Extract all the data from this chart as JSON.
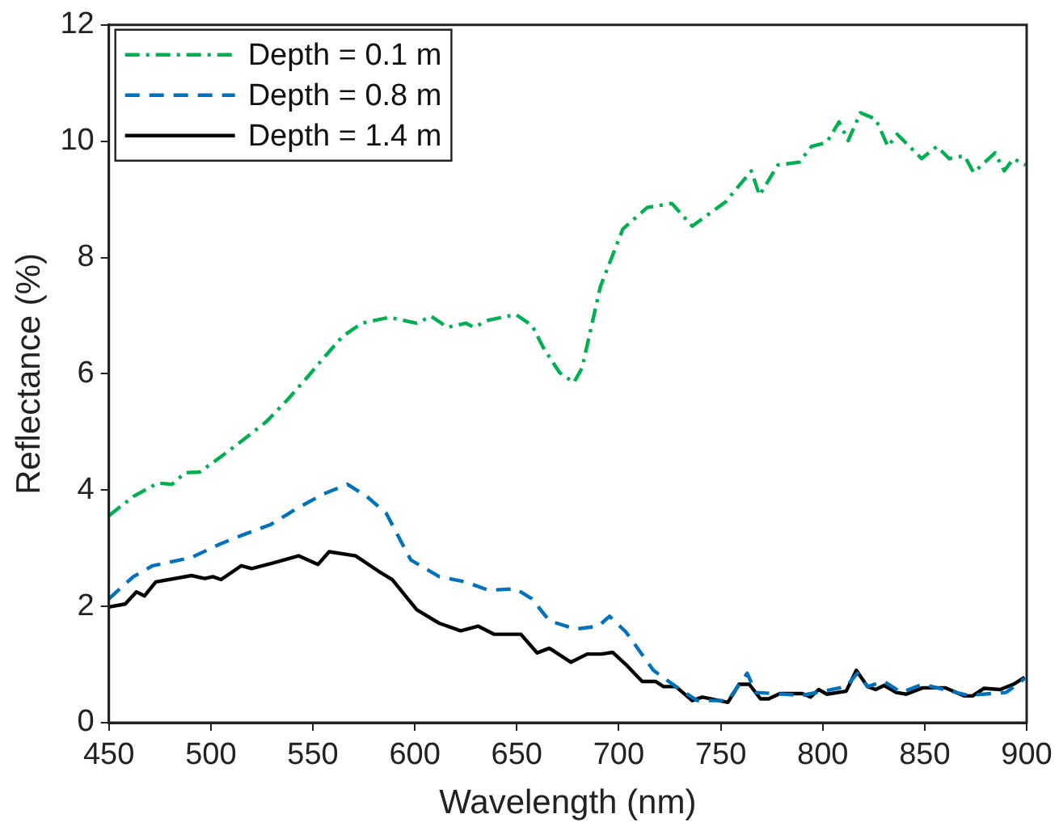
{
  "chart_data": {
    "type": "line",
    "xlabel": "Wavelength (nm)",
    "ylabel": "Reflectance (%)",
    "xlim": [
      450,
      900
    ],
    "xticks": [
      450,
      500,
      550,
      600,
      650,
      700,
      750,
      800,
      850,
      900
    ],
    "ylim": [
      0,
      12
    ],
    "yticks": [
      0,
      2,
      4,
      6,
      8,
      10,
      12
    ],
    "grid": false,
    "legend": "top left",
    "marker": "none",
    "series": [
      {
        "name": "Depth = 0.1 m",
        "color": "#00b050",
        "line_style": "dashdot",
        "x": [
          450,
          462,
          474,
          481,
          487.5,
          494.5,
          504,
          515,
          527,
          537.5,
          547,
          555,
          564.5,
          574,
          587.5,
          601,
          608,
          616,
          625,
          629,
          636,
          649.5,
          657.5,
          663,
          671,
          678,
          682,
          691,
          702,
          714,
          726,
          736,
          752.5,
          765,
          769,
          778,
          788.5,
          794.5,
          802,
          808,
          812.5,
          818.5,
          826,
          832,
          836.5,
          848.5,
          856,
          862,
          869.5,
          874,
          884.5,
          889,
          893.5,
          899.5
        ],
        "values": [
          3.56,
          3.89,
          4.12,
          4.1,
          4.3,
          4.31,
          4.55,
          4.84,
          5.17,
          5.55,
          5.93,
          6.26,
          6.64,
          6.87,
          6.97,
          6.87,
          6.99,
          6.8,
          6.87,
          6.8,
          6.92,
          7.02,
          6.83,
          6.45,
          6.02,
          5.85,
          6.1,
          7.5,
          8.49,
          8.86,
          8.93,
          8.54,
          8.96,
          9.49,
          9.07,
          9.59,
          9.64,
          9.91,
          9.98,
          10.33,
          10.01,
          10.49,
          10.38,
          9.91,
          10.12,
          9.7,
          9.91,
          9.7,
          9.75,
          9.46,
          9.8,
          9.49,
          9.7,
          9.59
        ]
      },
      {
        "name": "Depth = 0.8 m",
        "color": "#0072bd",
        "line_style": "dashed",
        "x": [
          450,
          462,
          471.5,
          490.5,
          505,
          515,
          529.5,
          541.5,
          555,
          567,
          576.5,
          586,
          598,
          612,
          625,
          636,
          649.5,
          657.5,
          666,
          679,
          690,
          695.5,
          703.5,
          717,
          728,
          738.5,
          753.5,
          763,
          767,
          790,
          811.5,
          817,
          822,
          830,
          838.5,
          849,
          871,
          890,
          899
        ],
        "values": [
          2.13,
          2.51,
          2.7,
          2.84,
          3.08,
          3.22,
          3.41,
          3.67,
          3.93,
          4.1,
          3.89,
          3.6,
          2.8,
          2.51,
          2.42,
          2.28,
          2.3,
          2.13,
          1.75,
          1.61,
          1.66,
          1.83,
          1.56,
          0.9,
          0.62,
          0.38,
          0.38,
          0.85,
          0.52,
          0.47,
          0.62,
          0.85,
          0.62,
          0.71,
          0.52,
          0.66,
          0.47,
          0.52,
          0.76
        ]
      },
      {
        "name": "Depth = 1.4 m",
        "color": "#000000",
        "line_style": "solid",
        "x": [
          450,
          458,
          463.5,
          467.5,
          473,
          490.5,
          497,
          501,
          505,
          515,
          520,
          531,
          543,
          552.5,
          558,
          571,
          582,
          589,
          601,
          612,
          622.5,
          631,
          639,
          652,
          660,
          666,
          676.5,
          684.5,
          691.5,
          697,
          703.5,
          711.5,
          718,
          722,
          728,
          736,
          741,
          753.5,
          759,
          764,
          769.5,
          773.5,
          779,
          790,
          794,
          798,
          802,
          811.5,
          816.5,
          822,
          826,
          830,
          836,
          841,
          849,
          860,
          869.5,
          873.5,
          879,
          887,
          893.5,
          899
        ],
        "values": [
          1.99,
          2.04,
          2.25,
          2.18,
          2.42,
          2.53,
          2.48,
          2.51,
          2.46,
          2.7,
          2.65,
          2.75,
          2.87,
          2.72,
          2.94,
          2.87,
          2.61,
          2.46,
          1.94,
          1.71,
          1.58,
          1.66,
          1.52,
          1.52,
          1.2,
          1.28,
          1.04,
          1.18,
          1.18,
          1.21,
          1.0,
          0.71,
          0.71,
          0.62,
          0.62,
          0.38,
          0.44,
          0.35,
          0.66,
          0.66,
          0.41,
          0.41,
          0.5,
          0.5,
          0.44,
          0.57,
          0.49,
          0.54,
          0.9,
          0.62,
          0.57,
          0.64,
          0.52,
          0.49,
          0.6,
          0.6,
          0.46,
          0.46,
          0.59,
          0.57,
          0.66,
          0.78
        ]
      }
    ]
  }
}
